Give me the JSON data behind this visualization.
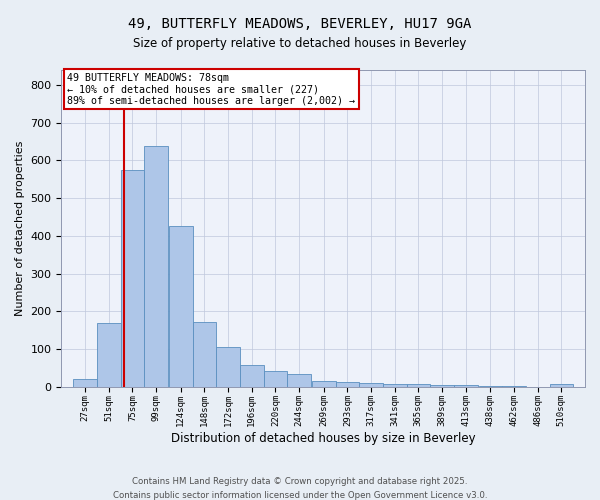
{
  "title1": "49, BUTTERFLY MEADOWS, BEVERLEY, HU17 9GA",
  "title2": "Size of property relative to detached houses in Beverley",
  "xlabel": "Distribution of detached houses by size in Beverley",
  "ylabel": "Number of detached properties",
  "bin_labels": [
    "27sqm",
    "51sqm",
    "75sqm",
    "99sqm",
    "124sqm",
    "148sqm",
    "172sqm",
    "196sqm",
    "220sqm",
    "244sqm",
    "269sqm",
    "293sqm",
    "317sqm",
    "341sqm",
    "365sqm",
    "389sqm",
    "413sqm",
    "438sqm",
    "462sqm",
    "486sqm",
    "510sqm"
  ],
  "bin_edges": [
    27,
    51,
    75,
    99,
    124,
    148,
    172,
    196,
    220,
    244,
    269,
    293,
    317,
    341,
    365,
    389,
    413,
    438,
    462,
    486,
    510
  ],
  "bar_heights": [
    20,
    168,
    575,
    638,
    427,
    170,
    105,
    57,
    42,
    33,
    16,
    12,
    10,
    8,
    6,
    5,
    3,
    2,
    1,
    0,
    7
  ],
  "bar_color": "#aec6e8",
  "bar_edge_color": "#5a8fc0",
  "property_line_x": 78,
  "property_line_color": "#cc0000",
  "ylim": [
    0,
    840
  ],
  "yticks": [
    0,
    100,
    200,
    300,
    400,
    500,
    600,
    700,
    800
  ],
  "annotation_title": "49 BUTTERFLY MEADOWS: 78sqm",
  "annotation_line2": "← 10% of detached houses are smaller (227)",
  "annotation_line3": "89% of semi-detached houses are larger (2,002) →",
  "annotation_box_color": "#ffffff",
  "annotation_box_edgecolor": "#cc0000",
  "footer1": "Contains HM Land Registry data © Crown copyright and database right 2025.",
  "footer2": "Contains public sector information licensed under the Open Government Licence v3.0.",
  "background_color": "#e8eef5",
  "plot_background_color": "#eef2fa"
}
